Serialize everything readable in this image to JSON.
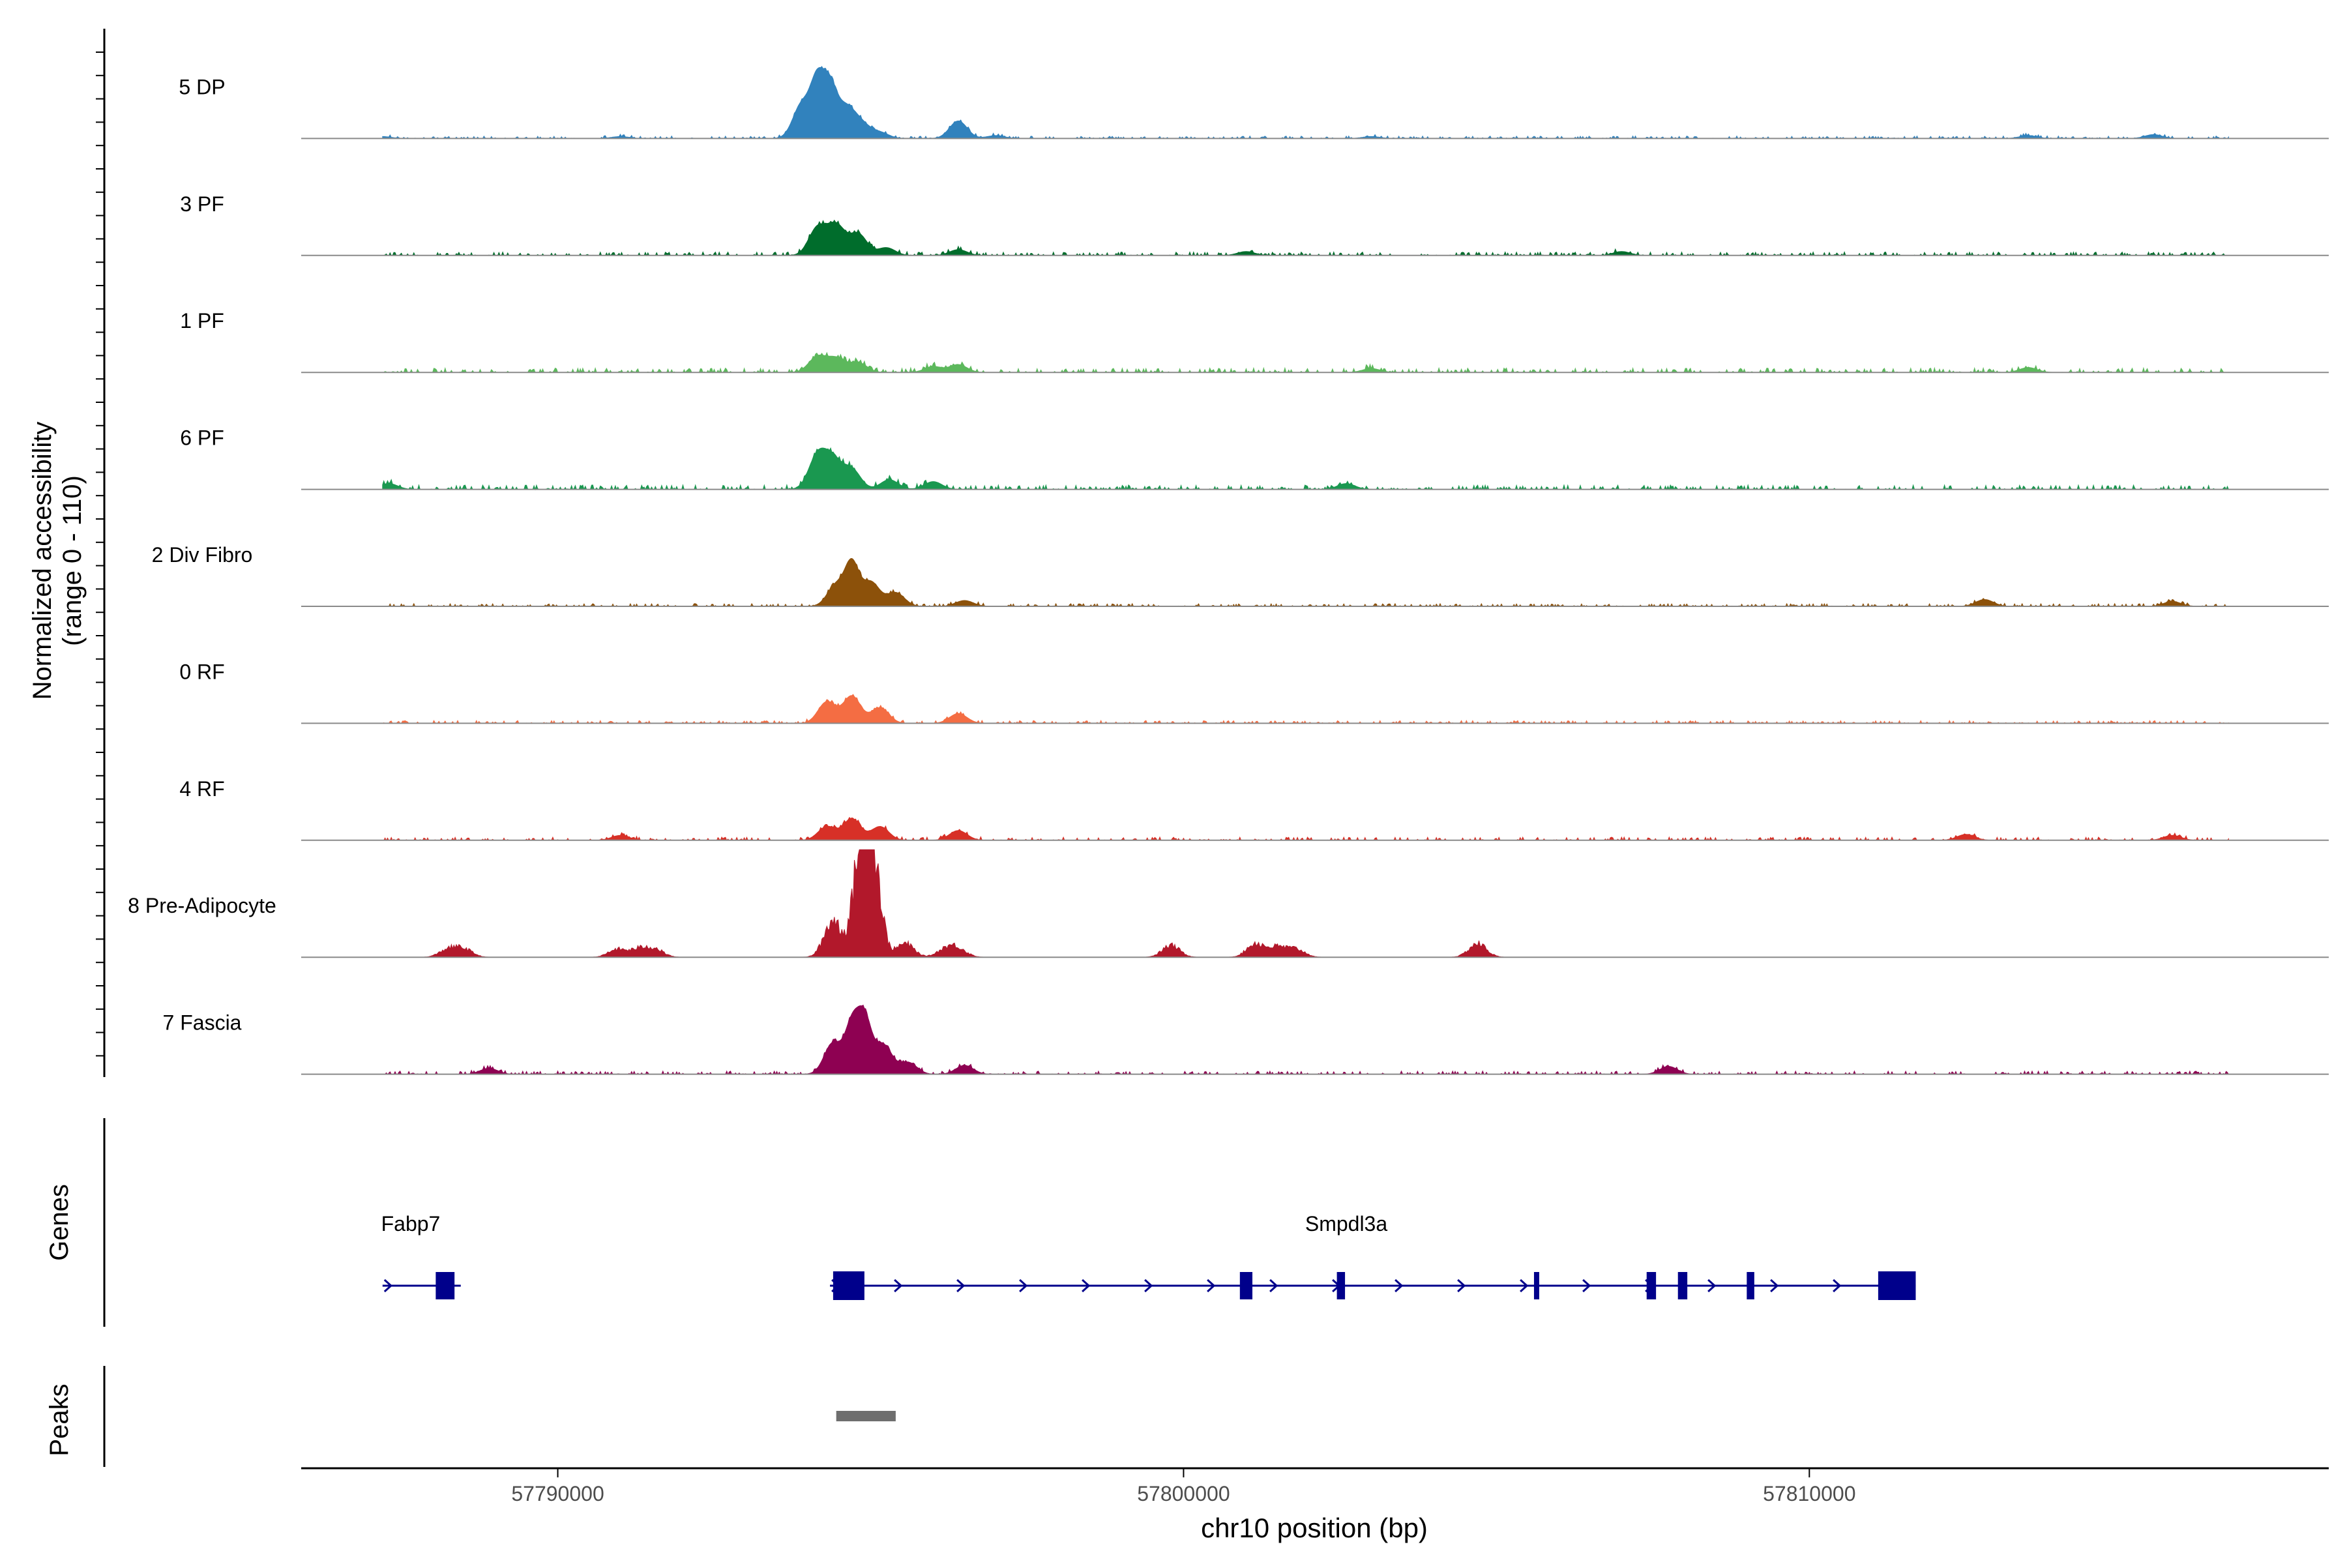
{
  "chart_data": {
    "type": "area",
    "title": "",
    "chromosome": "chr10",
    "xlabel": "chr10 position (bp)",
    "xlim": [
      57785900,
      57818300
    ],
    "x_ticks": [
      57790000,
      57800000,
      57810000
    ],
    "x_tick_labels": [
      "57790000",
      "57800000",
      "57810000"
    ],
    "ylabel_line1": "Normalized accessibility",
    "ylabel_line2": "(range 0 - 110)",
    "ylim": [
      0,
      110
    ],
    "genes_label": "Genes",
    "peaks_label": "Peaks",
    "tracks": [
      {
        "name": "5 DP",
        "color": "#3182bd",
        "peaks": [
          [
            57793900,
            35
          ],
          [
            57794150,
            55
          ],
          [
            57794350,
            48
          ],
          [
            57794600,
            30
          ],
          [
            57794850,
            14
          ],
          [
            57795150,
            6
          ],
          [
            57796400,
            18
          ],
          [
            57797000,
            3
          ],
          [
            57787200,
            2
          ],
          [
            57791000,
            2
          ],
          [
            57803000,
            2
          ],
          [
            57813500,
            3
          ],
          [
            57815500,
            4
          ]
        ],
        "noise": 2.5,
        "start": 57787200,
        "end": 57816700
      },
      {
        "name": "3 PF",
        "color": "#006d2c",
        "peaks": [
          [
            57794150,
            28
          ],
          [
            57794450,
            30
          ],
          [
            57794800,
            22
          ],
          [
            57795250,
            8
          ],
          [
            57796400,
            6
          ],
          [
            57801000,
            4
          ],
          [
            57807000,
            4
          ]
        ],
        "noise": 3.5,
        "start": 57787200,
        "end": 57816700
      },
      {
        "name": "1 PF",
        "color": "#5cb85c",
        "peaks": [
          [
            57794150,
            16
          ],
          [
            57794450,
            14
          ],
          [
            57794800,
            10
          ],
          [
            57796000,
            6
          ],
          [
            57796400,
            8
          ],
          [
            57803000,
            4
          ],
          [
            57813500,
            5
          ]
        ],
        "noise": 4.5,
        "start": 57787200,
        "end": 57816700
      },
      {
        "name": "6 PF",
        "color": "#1a9850",
        "peaks": [
          [
            57794150,
            34
          ],
          [
            57794400,
            28
          ],
          [
            57794700,
            20
          ],
          [
            57795300,
            10
          ],
          [
            57796000,
            8
          ],
          [
            57802600,
            6
          ],
          [
            57787300,
            6
          ]
        ],
        "noise": 4.5,
        "start": 57787200,
        "end": 57816700
      },
      {
        "name": "2 Div Fibro",
        "color": "#8c510a",
        "peaks": [
          [
            57794450,
            22
          ],
          [
            57794700,
            42
          ],
          [
            57795000,
            25
          ],
          [
            57795400,
            14
          ],
          [
            57796500,
            6
          ],
          [
            57812800,
            7
          ],
          [
            57815800,
            5
          ]
        ],
        "noise": 2.8,
        "start": 57787200,
        "end": 57816700
      },
      {
        "name": "0 RF",
        "color": "#f46d43",
        "peaks": [
          [
            57794300,
            22
          ],
          [
            57794700,
            28
          ],
          [
            57795150,
            16
          ],
          [
            57796400,
            10
          ]
        ],
        "noise": 2.8,
        "start": 57787200,
        "end": 57816700
      },
      {
        "name": "4 RF",
        "color": "#d73027",
        "peaks": [
          [
            57794300,
            14
          ],
          [
            57794700,
            22
          ],
          [
            57795150,
            14
          ],
          [
            57796400,
            10
          ],
          [
            57791000,
            5
          ],
          [
            57812500,
            6
          ],
          [
            57815800,
            5
          ]
        ],
        "noise": 3.2,
        "start": 57787200,
        "end": 57816700
      },
      {
        "name": "8 Pre-Adipocyte",
        "color": "#b2182b",
        "peaks": [
          [
            57794400,
            38
          ],
          [
            57794800,
            70
          ],
          [
            57794950,
            110
          ],
          [
            57795100,
            52
          ],
          [
            57795550,
            14
          ],
          [
            57788250,
            8
          ],
          [
            57788500,
            8
          ],
          [
            57790950,
            8
          ],
          [
            57791300,
            8
          ],
          [
            57791550,
            8
          ],
          [
            57796200,
            8
          ],
          [
            57796400,
            8
          ],
          [
            57799800,
            12
          ],
          [
            57801150,
            14
          ],
          [
            57801500,
            10
          ],
          [
            57801800,
            8
          ],
          [
            57804700,
            14
          ]
        ],
        "noise": 0,
        "start": 57787200,
        "end": 57816700
      },
      {
        "name": "7 Fascia",
        "color": "#8e0152",
        "peaks": [
          [
            57794400,
            32
          ],
          [
            57794700,
            48
          ],
          [
            57794900,
            55
          ],
          [
            57795200,
            30
          ],
          [
            57795600,
            12
          ],
          [
            57796500,
            9
          ],
          [
            57807750,
            8
          ],
          [
            57788900,
            6
          ]
        ],
        "noise": 3.2,
        "start": 57787200,
        "end": 57816700
      }
    ],
    "genes": [
      {
        "name": "Fabp7",
        "strand": "+",
        "start": 57787200,
        "end": 57788450,
        "label_pos": 57787650,
        "exons": [
          [
            57788050,
            57788350
          ]
        ]
      },
      {
        "name": "Smpdl3a",
        "strand": "+",
        "start": 57794350,
        "end": 57811700,
        "label_pos": 57802600,
        "exons": [
          [
            57794400,
            57794900
          ],
          [
            57800900,
            57801100
          ],
          [
            57802450,
            57802580
          ],
          [
            57805600,
            57805680
          ],
          [
            57807400,
            57807550
          ],
          [
            57807900,
            57808050
          ],
          [
            57809000,
            57809120
          ],
          [
            57811100,
            57811700
          ]
        ]
      }
    ],
    "peaks_regions": [
      [
        57794450,
        57795400
      ]
    ]
  }
}
